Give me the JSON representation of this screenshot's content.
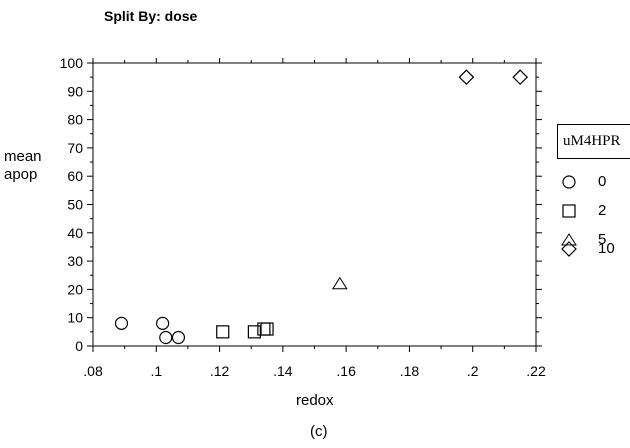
{
  "header": {
    "split_by": "Split By: dose"
  },
  "caption": "(c)",
  "legend": {
    "title": "uM4HPR",
    "items": [
      {
        "label": "0",
        "marker": "circle"
      },
      {
        "label": "2",
        "marker": "square"
      },
      {
        "label": "5",
        "marker": "triangle"
      },
      {
        "label": "10",
        "marker": "diamond"
      }
    ]
  },
  "chart_data": {
    "type": "scatter",
    "title": "",
    "xlabel": "redox",
    "ylabel_lines": [
      "mean",
      "apop"
    ],
    "xlim": [
      0.08,
      0.22
    ],
    "ylim": [
      0,
      100
    ],
    "x_ticks": [
      ".08",
      ".1",
      ".12",
      ".14",
      ".16",
      ".18",
      ".2",
      ".22"
    ],
    "x_tick_values": [
      0.08,
      0.1,
      0.12,
      0.14,
      0.16,
      0.18,
      0.2,
      0.22
    ],
    "y_ticks": [
      "0",
      "10",
      "20",
      "30",
      "40",
      "50",
      "60",
      "70",
      "80",
      "90",
      "100"
    ],
    "y_tick_values": [
      0,
      10,
      20,
      30,
      40,
      50,
      60,
      70,
      80,
      90,
      100
    ],
    "grid": false,
    "legend_position": "right",
    "series": [
      {
        "name": "0",
        "marker": "circle",
        "x": [
          0.089,
          0.102,
          0.103,
          0.107
        ],
        "y": [
          8,
          8,
          3,
          3
        ]
      },
      {
        "name": "2",
        "marker": "square",
        "x": [
          0.121,
          0.131,
          0.134,
          0.135
        ],
        "y": [
          5,
          5,
          6,
          6
        ]
      },
      {
        "name": "5",
        "marker": "triangle",
        "x": [
          0.158
        ],
        "y": [
          22
        ]
      },
      {
        "name": "10",
        "marker": "diamond",
        "x": [
          0.198,
          0.215
        ],
        "y": [
          95,
          95
        ]
      }
    ]
  }
}
